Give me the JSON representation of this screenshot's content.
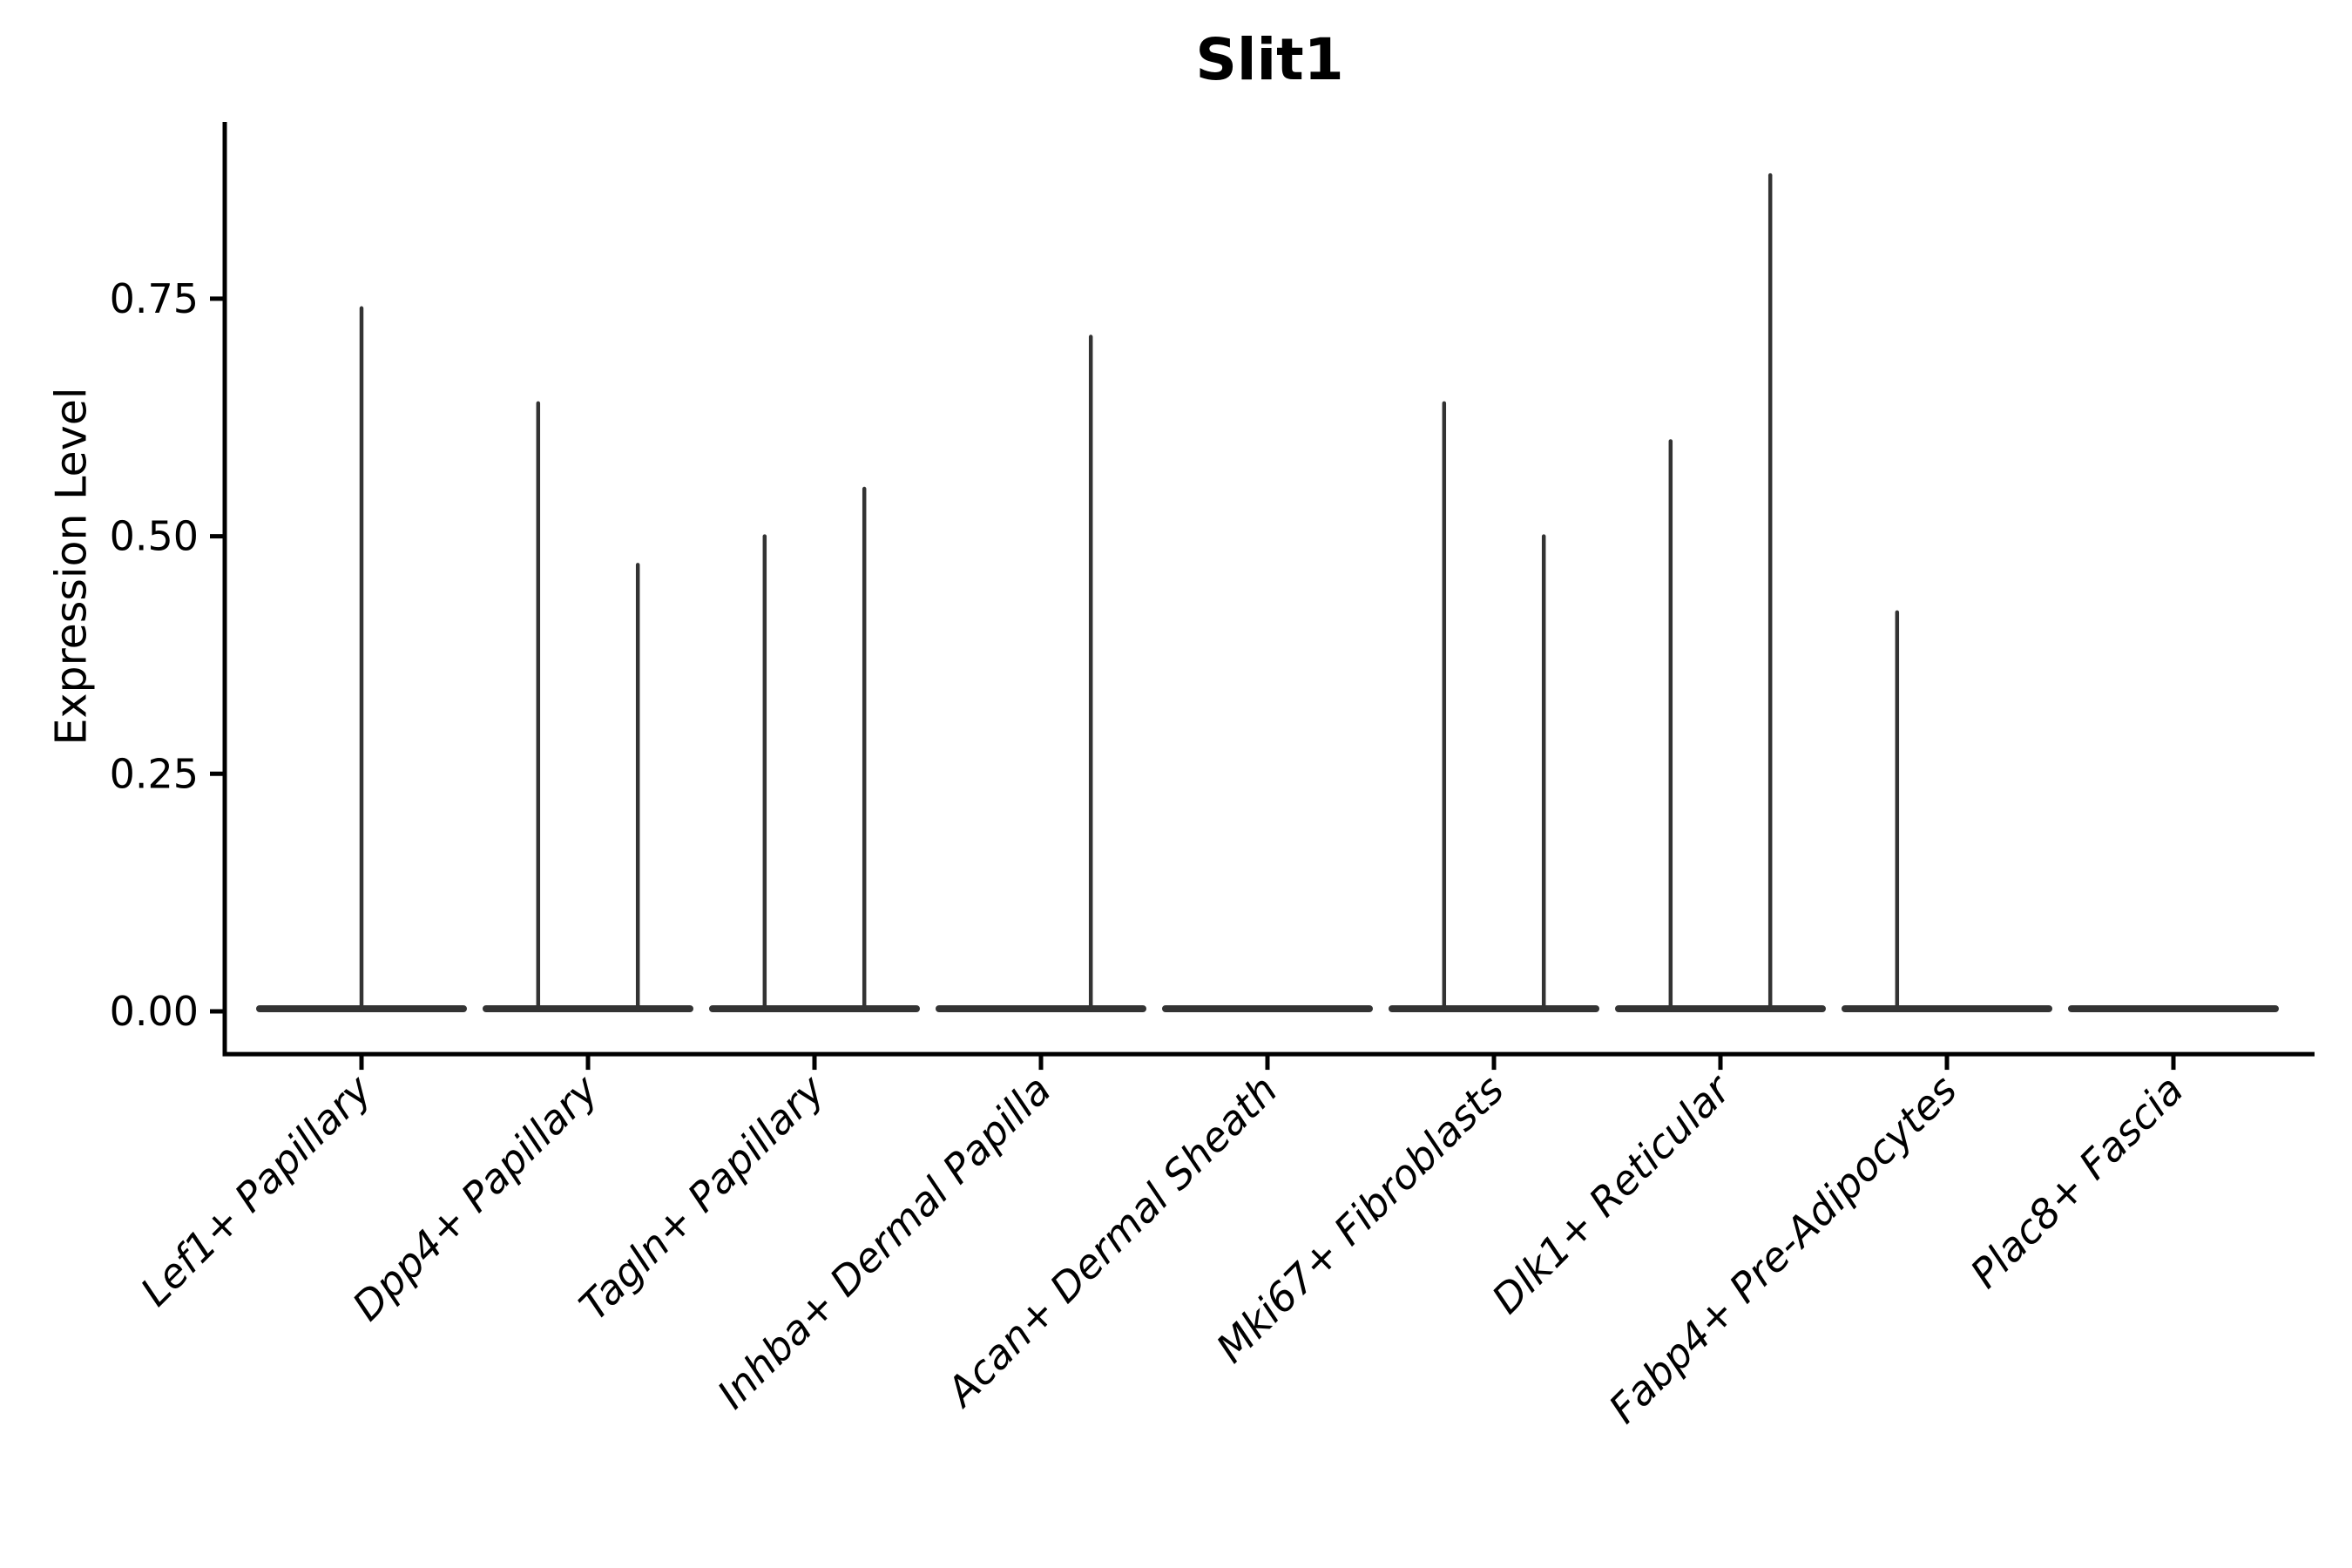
{
  "title": "Slit1",
  "chart_data": {
    "type": "violin",
    "title": "Slit1",
    "xlabel": "",
    "ylabel": "Expression Level",
    "yticks": [
      0,
      0.25,
      0.5,
      0.75
    ],
    "ytick_labels": [
      "0.00",
      "0.25",
      "0.50",
      "0.75"
    ],
    "ylim": [
      -0.045,
      0.936
    ],
    "grid": false,
    "legend": "none",
    "x_tick_rotation_deg": 45,
    "x_tick_style": "italic",
    "categories": [
      "Lef1+ Papillary",
      "Dpp4+ Papillary",
      "Tagln+ Papillary",
      "Inhba+ Dermal Papilla",
      "Acan+ Dermal Sheath",
      "Mki67+ Fibroblasts",
      "Dlk1+ Reticular",
      "Fabp4+ Pre-Adipocytes",
      "Plac8+ Fascia"
    ],
    "violins": [
      {
        "category": "Lef1+ Papillary",
        "baseline_value": 0,
        "spikes": [
          {
            "offset": 0,
            "max": 0.74
          }
        ]
      },
      {
        "category": "Dpp4+ Papillary",
        "baseline_value": 0,
        "spikes": [
          {
            "offset": -0.22,
            "max": 0.64
          },
          {
            "offset": 0.22,
            "max": 0.47
          }
        ]
      },
      {
        "category": "Tagln+ Papillary",
        "baseline_value": 0,
        "spikes": [
          {
            "offset": -0.22,
            "max": 0.5
          },
          {
            "offset": 0.22,
            "max": 0.55
          }
        ]
      },
      {
        "category": "Inhba+ Dermal Papilla",
        "baseline_value": 0,
        "spikes": [
          {
            "offset": 0.22,
            "max": 0.71
          }
        ]
      },
      {
        "category": "Acan+ Dermal Sheath",
        "baseline_value": 0,
        "spikes": []
      },
      {
        "category": "Mki67+ Fibroblasts",
        "baseline_value": 0,
        "spikes": [
          {
            "offset": -0.22,
            "max": 0.64
          },
          {
            "offset": 0.22,
            "max": 0.5
          }
        ]
      },
      {
        "category": "Dlk1+ Reticular",
        "baseline_value": 0,
        "spikes": [
          {
            "offset": -0.22,
            "max": 0.6
          },
          {
            "offset": 0.22,
            "max": 0.88
          }
        ]
      },
      {
        "category": "Fabp4+ Pre-Adipocytes",
        "baseline_value": 0,
        "spikes": [
          {
            "offset": -0.22,
            "max": 0.42
          }
        ]
      },
      {
        "category": "Plac8+ Fascia",
        "baseline_value": 0,
        "spikes": []
      }
    ],
    "violin_line_color": "#333333",
    "axis_color": "#000000"
  }
}
